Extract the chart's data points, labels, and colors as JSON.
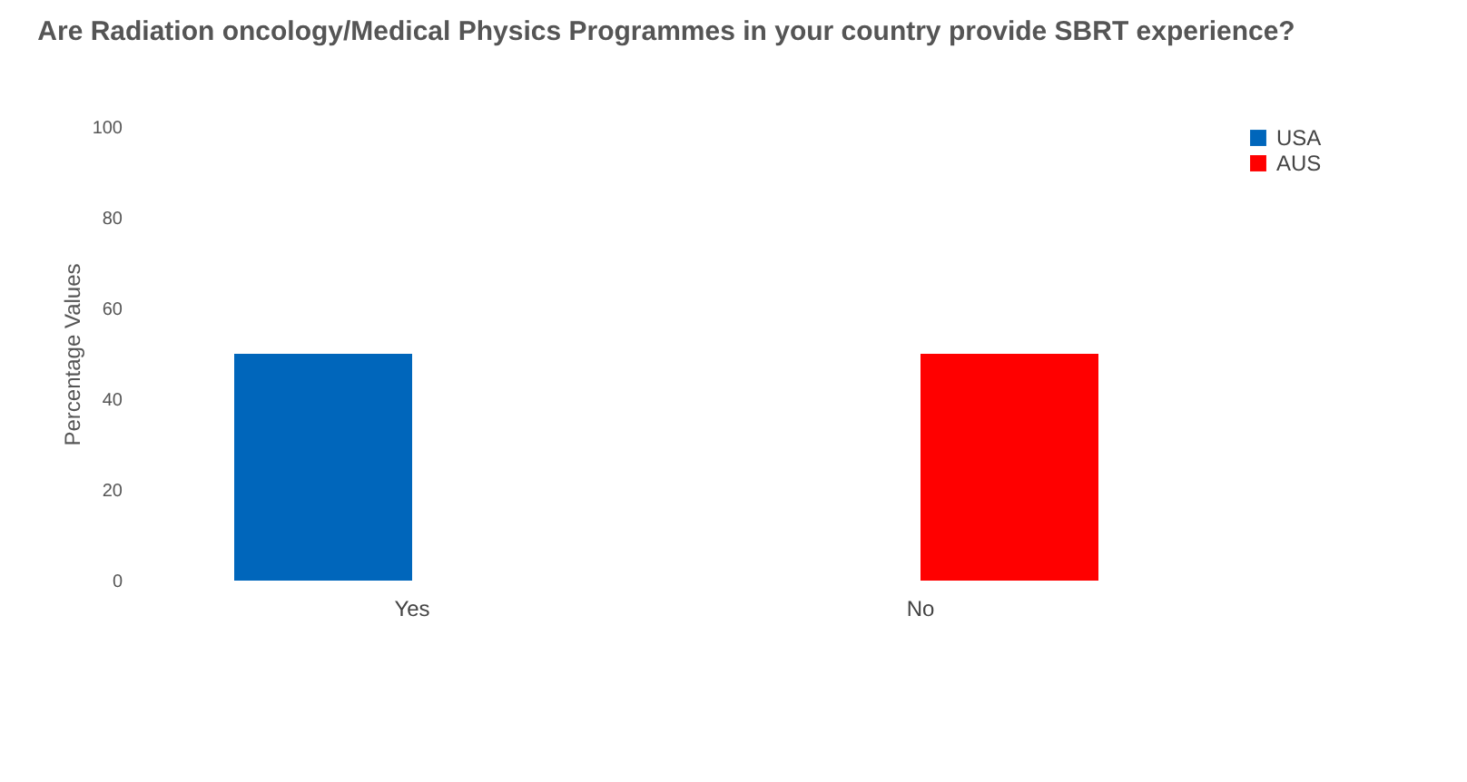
{
  "chart_data": {
    "type": "bar",
    "title": "Are Radiation oncology/Medical Physics Programmes in your country provide SBRT experience?",
    "ylabel": "Percentage Values",
    "categories": [
      "Yes",
      "No"
    ],
    "series": [
      {
        "name": "USA",
        "color": "#0066bb",
        "values": [
          50,
          0
        ]
      },
      {
        "name": "AUS",
        "color": "#ff0000",
        "values": [
          0,
          50
        ]
      }
    ],
    "ylim": [
      0,
      100
    ],
    "yticks": [
      0,
      20,
      40,
      60,
      80,
      100
    ],
    "grid": false,
    "legend": "right"
  }
}
